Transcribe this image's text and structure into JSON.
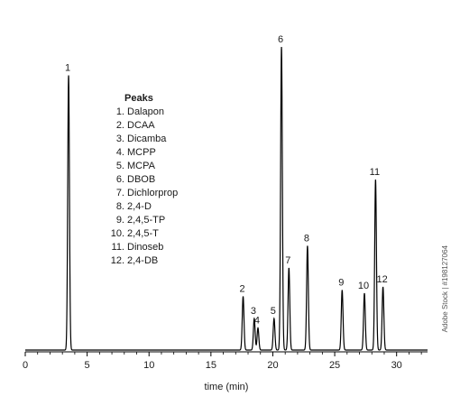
{
  "chart_data": {
    "type": "line",
    "xlabel": "time (min)",
    "ylabel": "",
    "xlim": [
      0,
      32.5
    ],
    "ylim": [
      0,
      1.0
    ],
    "xticks": [
      0,
      5,
      10,
      15,
      20,
      25,
      30
    ],
    "grid": false,
    "peaks": [
      {
        "label": "1",
        "x": 3.5,
        "y": 0.87
      },
      {
        "label": "2",
        "x": 17.6,
        "y": 0.17
      },
      {
        "label": "3",
        "x": 18.5,
        "y": 0.1
      },
      {
        "label": "4",
        "x": 18.8,
        "y": 0.07
      },
      {
        "label": "5",
        "x": 20.1,
        "y": 0.1
      },
      {
        "label": "6",
        "x": 20.7,
        "y": 0.96
      },
      {
        "label": "7",
        "x": 21.3,
        "y": 0.26
      },
      {
        "label": "8",
        "x": 22.8,
        "y": 0.33
      },
      {
        "label": "9",
        "x": 25.6,
        "y": 0.19
      },
      {
        "label": "10",
        "x": 27.4,
        "y": 0.18
      },
      {
        "label": "11",
        "x": 28.3,
        "y": 0.54
      },
      {
        "label": "12",
        "x": 28.9,
        "y": 0.2
      }
    ],
    "legend": {
      "title": "Peaks",
      "placement": "upper-left",
      "entries": [
        {
          "num": "1.",
          "name": "Dalapon"
        },
        {
          "num": "2.",
          "name": "DCAA"
        },
        {
          "num": "3.",
          "name": "Dicamba"
        },
        {
          "num": "4.",
          "name": "MCPP"
        },
        {
          "num": "5.",
          "name": "MCPA"
        },
        {
          "num": "6.",
          "name": "DBOB"
        },
        {
          "num": "7.",
          "name": "Dichlorprop"
        },
        {
          "num": "8.",
          "name": "2,4-D"
        },
        {
          "num": "9.",
          "name": "2,4,5-TP"
        },
        {
          "num": "10.",
          "name": "2,4,5-T"
        },
        {
          "num": "11.",
          "name": "Dinoseb"
        },
        {
          "num": "12.",
          "name": "2,4-DB"
        }
      ]
    }
  },
  "watermark": "Adobe Stock | #198127064"
}
